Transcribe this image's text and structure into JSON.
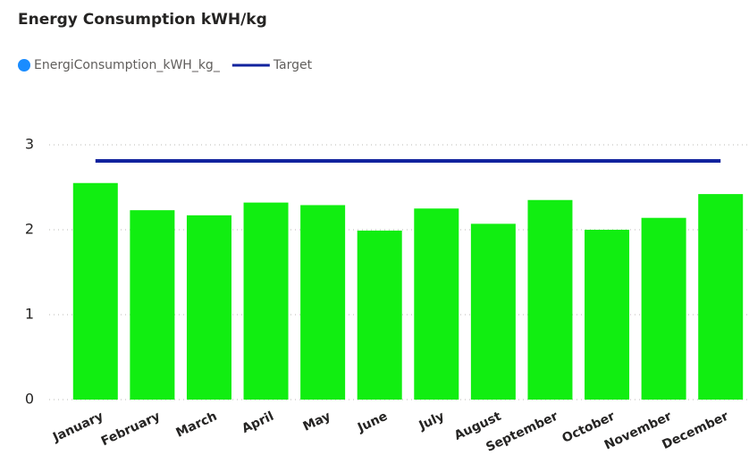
{
  "chart_data": {
    "type": "bar",
    "title": "Energy Consumption kWH/kg",
    "categories": [
      "January",
      "February",
      "March",
      "April",
      "May",
      "June",
      "July",
      "August",
      "September",
      "October",
      "November",
      "December"
    ],
    "series": [
      {
        "name": "EnergiConsumption_kWH_kg_",
        "type": "bar",
        "color": "#11ee11",
        "legend_color": "#1a8cff",
        "values": [
          2.55,
          2.23,
          2.17,
          2.32,
          2.29,
          1.99,
          2.25,
          2.07,
          2.35,
          2.0,
          2.14,
          2.42
        ]
      },
      {
        "name": "Target",
        "type": "line",
        "color": "#12239e",
        "values": [
          2.81,
          2.81,
          2.81,
          2.81,
          2.81,
          2.81,
          2.81,
          2.81,
          2.81,
          2.81,
          2.81,
          2.81
        ]
      }
    ],
    "ylim": [
      0,
      3
    ],
    "yticks": [
      0,
      1,
      2,
      3
    ],
    "grid": true
  }
}
